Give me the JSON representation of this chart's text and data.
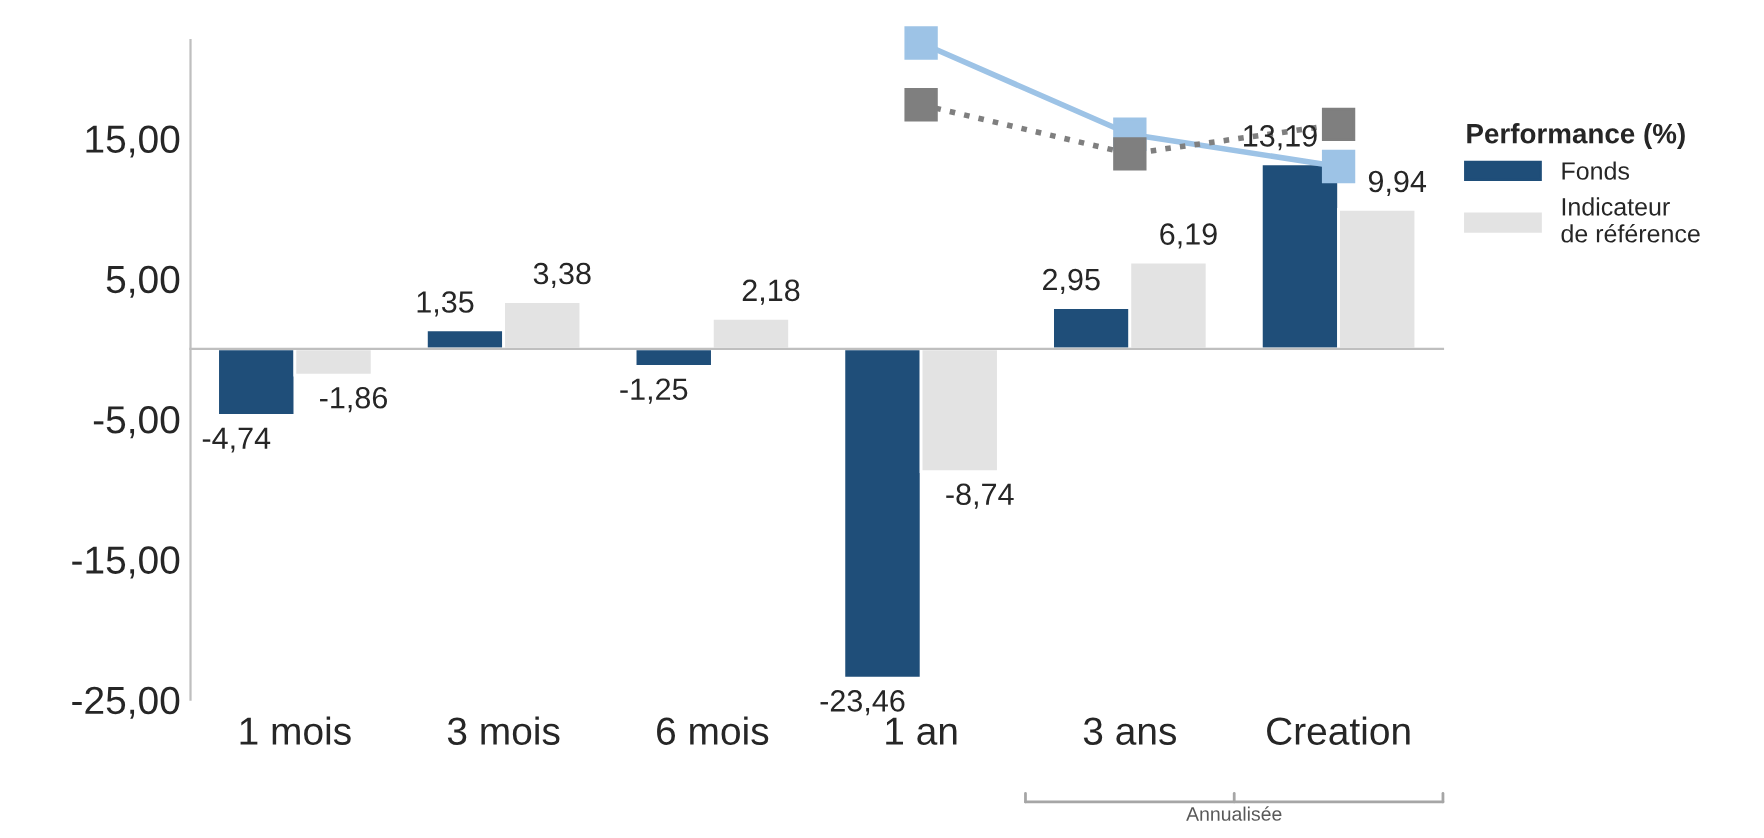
{
  "chart_data": {
    "type": "bar",
    "categories": [
      "1 mois",
      "3 mois",
      "6 mois",
      "1 an",
      "3 ans",
      "Creation"
    ],
    "series": [
      {
        "name": "Fonds",
        "color": "#1f4e79",
        "values": [
          -4.74,
          1.35,
          -1.25,
          -23.46,
          2.95,
          13.19
        ],
        "value_labels": [
          "-4,74",
          "1,35",
          "-1,25",
          "-23,46",
          "2,95",
          "13,19"
        ]
      },
      {
        "name": "Indicateur\nde référence",
        "color": "#e3e3e3",
        "values": [
          -1.86,
          3.38,
          2.18,
          -8.74,
          6.19,
          9.94
        ],
        "value_labels": [
          "-1,86",
          "3,38",
          "2,18",
          "-8,74",
          "6,19",
          "9,94"
        ]
      },
      {
        "type": "line",
        "color": "#9dc3e6",
        "marker": "square",
        "line_style": "solid",
        "values": [
          null,
          null,
          null,
          21.8,
          15.3,
          13.0
        ]
      },
      {
        "type": "line",
        "color": "#7f7f7f",
        "marker": "square",
        "line_style": "dotted",
        "values": [
          null,
          null,
          null,
          17.4,
          13.9,
          16.0
        ]
      }
    ],
    "ylim": [
      -25,
      22
    ],
    "yticks": [
      {
        "value": -25,
        "label": "-25,00"
      },
      {
        "value": -15,
        "label": "-15,00"
      },
      {
        "value": -5,
        "label": "-5,00"
      },
      {
        "value": 5,
        "label": "5,00"
      },
      {
        "value": 15,
        "label": "15,00"
      }
    ],
    "legend": "right",
    "legend_title": "Performance (%)",
    "grid": false,
    "annotations": [
      "Annualisée"
    ]
  }
}
